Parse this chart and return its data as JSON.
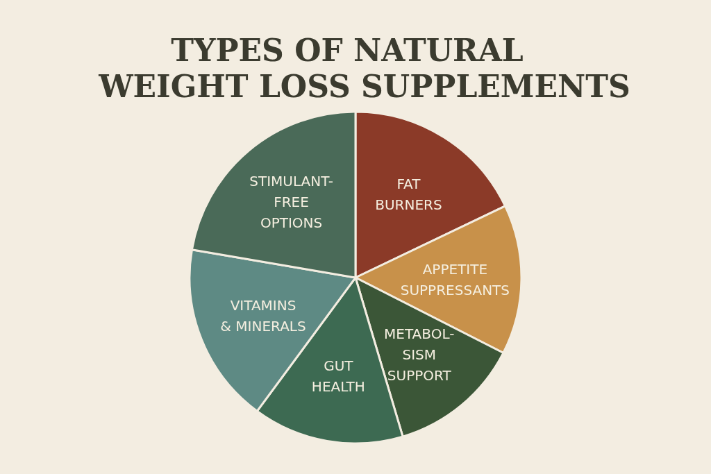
{
  "chart_data": {
    "type": "pie",
    "title": "TYPES OF NATURAL\nWEIGHT LOSS SUPPLEMENTS",
    "categories": [
      "FAT\nBURNERS",
      "APPETITE\nSUPPRESSANTS",
      "METABOL-\nSISM\nSUPPORT",
      "GUT\nHEALTH",
      "VITAMINS\n& MINERALS",
      "STIMULANT-\nFREE\nOPTIONS"
    ],
    "values": [
      17.9,
      14.6,
      12.9,
      14.7,
      17.6,
      22.3
    ],
    "colors": [
      "#8b3a28",
      "#c8914a",
      "#3b5637",
      "#3d6a52",
      "#5e8a84",
      "#4a6a58"
    ]
  }
}
